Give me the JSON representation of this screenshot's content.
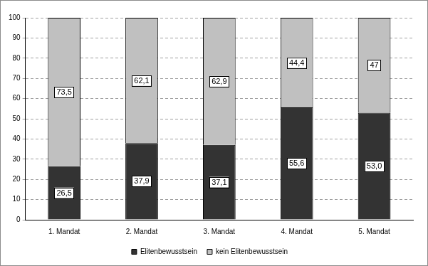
{
  "chart_data": {
    "type": "bar",
    "stacked": true,
    "categories": [
      "1. Mandat",
      "2. Mandat",
      "3. Mandat",
      "4. Mandat",
      "5. Mandat"
    ],
    "series": [
      {
        "name": "Elitenbewusstsein",
        "color": "#333333",
        "values": [
          26.5,
          37.9,
          37.1,
          55.6,
          53.0
        ],
        "value_labels": [
          "26,5",
          "37,9",
          "37,1",
          "55,6",
          "53,0"
        ]
      },
      {
        "name": "kein Elitenbewusstsein",
        "color": "#c0c0c0",
        "values": [
          73.5,
          62.1,
          62.9,
          44.4,
          47
        ],
        "value_labels": [
          "73,5",
          "62,1",
          "62,9",
          "44,4",
          "47"
        ]
      }
    ],
    "ylim": [
      0,
      100
    ],
    "yticks": [
      0,
      10,
      20,
      30,
      40,
      50,
      60,
      70,
      80,
      90,
      100
    ],
    "grid": true,
    "legend": "bottom",
    "data_labels": true
  }
}
